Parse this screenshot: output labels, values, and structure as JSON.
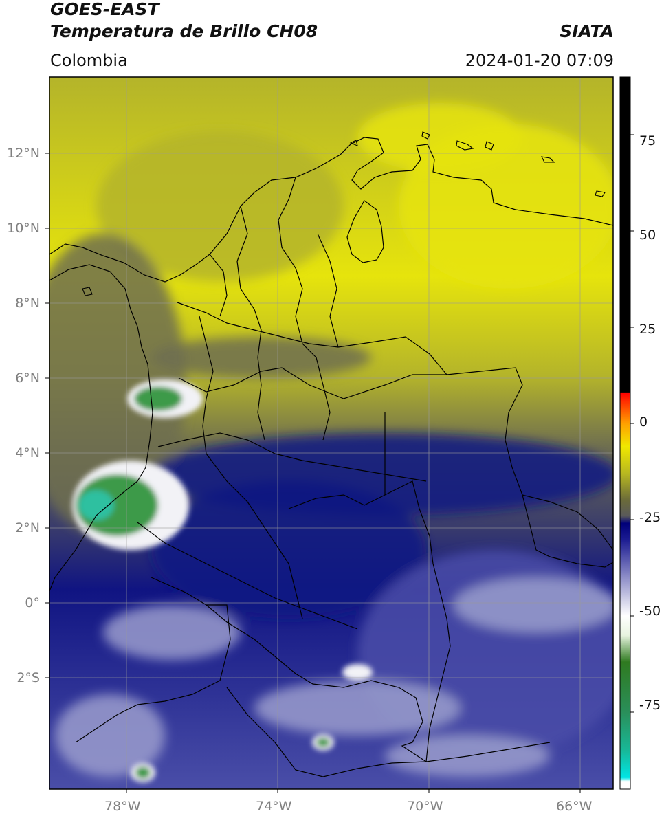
{
  "header": {
    "title_line1": "GOES-EAST",
    "title_line2": "Temperatura de Brillo CH08",
    "region": "Colombia",
    "agency": "SIATA",
    "datetime": "2024-01-20 07:09"
  },
  "axes": {
    "lat_labels": [
      "12°N",
      "10°N",
      "8°N",
      "6°N",
      "4°N",
      "2°N",
      "0°",
      "2°S"
    ],
    "lon_labels": [
      "78°W",
      "74°W",
      "70°W",
      "66°W"
    ]
  },
  "colorbar": {
    "tick_labels": [
      "75",
      "50",
      "25",
      "0",
      "-25",
      "-50",
      "-75"
    ],
    "range": [
      -95,
      90
    ],
    "stops": [
      {
        "v": -95,
        "c": "#ffffff"
      },
      {
        "v": -93,
        "c": "#ffffff"
      },
      {
        "v": -92,
        "c": "#00e5e5"
      },
      {
        "v": -85,
        "c": "#18b898"
      },
      {
        "v": -75,
        "c": "#2a8f5a"
      },
      {
        "v": -62,
        "c": "#2f7a20"
      },
      {
        "v": -55,
        "c": "#e8f4e0"
      },
      {
        "v": -50,
        "c": "#ffffff"
      },
      {
        "v": -40,
        "c": "#8e8ec8"
      },
      {
        "v": -30,
        "c": "#1a1a90"
      },
      {
        "v": -26,
        "c": "#00007a"
      },
      {
        "v": -24,
        "c": "#5a5a5a"
      },
      {
        "v": -20,
        "c": "#6a6a3a"
      },
      {
        "v": -13,
        "c": "#b8b820"
      },
      {
        "v": -6,
        "c": "#f0e800"
      },
      {
        "v": 0,
        "c": "#ffa000"
      },
      {
        "v": 8,
        "c": "#ff0000"
      },
      {
        "v": 8.1,
        "c": "#000000"
      },
      {
        "v": 90,
        "c": "#000000"
      }
    ]
  },
  "colors": {
    "yellow_high": "#e6e40c",
    "olive_mid": "#b4b42a",
    "gray_low": "#6e6e50",
    "deep_blue": "#101482",
    "mid_blue": "#4a4ea8",
    "light_blue": "#9a9ccc",
    "white_top": "#f2f2f6",
    "green_core": "#3c9a4a",
    "teal_core": "#2ec0a0",
    "grid": "#9a9a9a",
    "borders": "#000000"
  }
}
